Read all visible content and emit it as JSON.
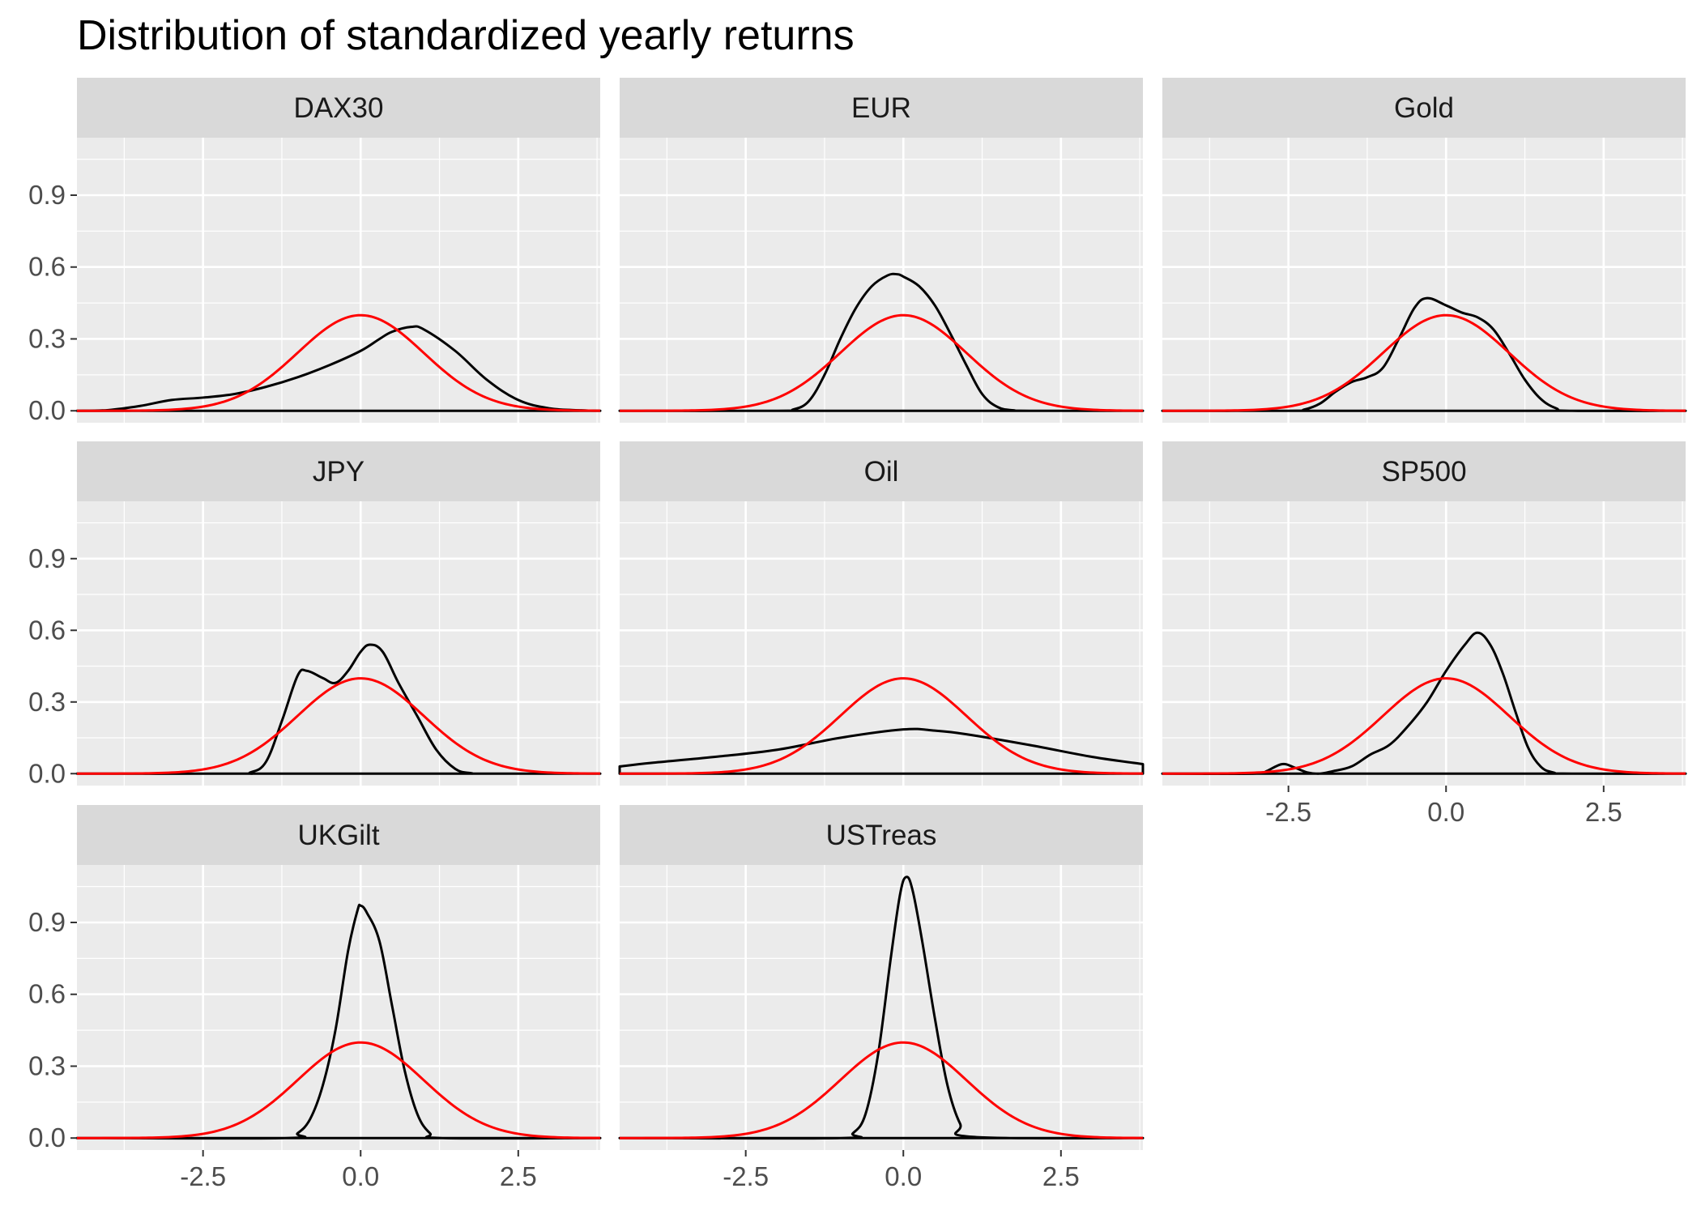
{
  "chart_data": {
    "type": "line",
    "title": "Distribution of standardized yearly returns",
    "xlabel": "",
    "ylabel": "",
    "xlim": [
      -4.5,
      3.8
    ],
    "ylim": [
      -0.05,
      1.14
    ],
    "x_ticks": [
      -2.5,
      0.0,
      2.5
    ],
    "x_tick_labels": [
      "-2.5",
      "0.0",
      "2.5"
    ],
    "y_ticks": [
      0.0,
      0.3,
      0.6,
      0.9
    ],
    "y_tick_labels": [
      "0.0",
      "0.3",
      "0.6",
      "0.9"
    ],
    "grid": true,
    "legend": "none",
    "colors": {
      "density": "#000000",
      "normal": "#ff0000",
      "panel_bg": "#ebebeb",
      "strip_bg": "#d9d9d9",
      "grid": "#ffffff"
    },
    "reference_curve": {
      "mean": 0,
      "sd": 1,
      "x_range": [
        -4.5,
        3.8
      ]
    },
    "panels": [
      {
        "label": "DAX30",
        "x": [
          -4.5,
          -4.0,
          -3.5,
          -3.0,
          -2.5,
          -2.0,
          -1.5,
          -1.0,
          -0.5,
          0.0,
          0.3,
          0.5,
          0.8,
          1.0,
          1.5,
          2.0,
          2.5,
          3.0,
          3.5,
          3.8
        ],
        "y": [
          0,
          0.003,
          0.02,
          0.045,
          0.055,
          0.07,
          0.1,
          0.14,
          0.19,
          0.25,
          0.3,
          0.33,
          0.35,
          0.34,
          0.25,
          0.13,
          0.045,
          0.01,
          0.002,
          0
        ]
      },
      {
        "label": "EUR",
        "x": [
          -4.5,
          -2.0,
          -1.75,
          -1.5,
          -1.25,
          -1.0,
          -0.75,
          -0.5,
          -0.25,
          -0.1,
          0.0,
          0.25,
          0.5,
          0.75,
          1.0,
          1.25,
          1.5,
          1.75,
          2.0,
          3.8
        ],
        "y": [
          0,
          0,
          0.005,
          0.04,
          0.15,
          0.3,
          0.43,
          0.52,
          0.565,
          0.57,
          0.56,
          0.52,
          0.44,
          0.32,
          0.19,
          0.07,
          0.015,
          0.002,
          0,
          0
        ]
      },
      {
        "label": "Gold",
        "x": [
          -4.5,
          -2.5,
          -2.25,
          -2.0,
          -1.75,
          -1.5,
          -1.25,
          -1.0,
          -0.75,
          -0.5,
          -0.3,
          0.0,
          0.25,
          0.5,
          0.75,
          1.0,
          1.25,
          1.5,
          1.75,
          2.0,
          3.8
        ],
        "y": [
          0,
          0,
          0.005,
          0.03,
          0.08,
          0.12,
          0.14,
          0.18,
          0.3,
          0.43,
          0.47,
          0.44,
          0.41,
          0.39,
          0.34,
          0.24,
          0.13,
          0.05,
          0.01,
          0,
          0
        ]
      },
      {
        "label": "JPY",
        "x": [
          -4.5,
          -2.0,
          -1.75,
          -1.5,
          -1.25,
          -1.0,
          -0.85,
          -0.6,
          -0.4,
          -0.2,
          0.0,
          0.15,
          0.35,
          0.6,
          0.9,
          1.2,
          1.5,
          1.75,
          2.0,
          3.8
        ],
        "y": [
          0,
          0,
          0.005,
          0.05,
          0.22,
          0.41,
          0.43,
          0.4,
          0.38,
          0.43,
          0.51,
          0.54,
          0.51,
          0.38,
          0.24,
          0.1,
          0.02,
          0.002,
          0,
          0
        ]
      },
      {
        "label": "Oil",
        "x": [
          -4.5,
          -4.0,
          -3.0,
          -2.0,
          -1.0,
          0.0,
          0.5,
          1.0,
          2.0,
          3.0,
          3.8
        ],
        "y": [
          0.03,
          0.045,
          0.07,
          0.1,
          0.15,
          0.185,
          0.18,
          0.165,
          0.12,
          0.07,
          0.04
        ]
      },
      {
        "label": "SP500",
        "x": [
          -4.5,
          -3.0,
          -2.85,
          -2.6,
          -2.4,
          -2.2,
          -2.0,
          -1.8,
          -1.5,
          -1.2,
          -0.9,
          -0.6,
          -0.3,
          0.0,
          0.3,
          0.5,
          0.7,
          0.9,
          1.1,
          1.3,
          1.5,
          1.7,
          2.0,
          3.8
        ],
        "y": [
          0,
          0,
          0.01,
          0.04,
          0.025,
          0.005,
          0.0,
          0.01,
          0.03,
          0.08,
          0.12,
          0.2,
          0.3,
          0.43,
          0.54,
          0.59,
          0.54,
          0.42,
          0.26,
          0.11,
          0.03,
          0.005,
          0,
          0
        ]
      },
      {
        "label": "UKGilt",
        "x": [
          -4.5,
          -1.2,
          -1.0,
          -0.8,
          -0.6,
          -0.4,
          -0.2,
          -0.05,
          0.0,
          0.1,
          0.3,
          0.5,
          0.7,
          0.9,
          1.1,
          1.3,
          3.8
        ],
        "y": [
          0,
          0,
          0.02,
          0.08,
          0.22,
          0.45,
          0.78,
          0.95,
          0.97,
          0.94,
          0.82,
          0.55,
          0.28,
          0.1,
          0.02,
          0,
          0
        ]
      },
      {
        "label": "USTreas",
        "x": [
          -4.5,
          -1.0,
          -0.8,
          -0.6,
          -0.4,
          -0.2,
          -0.05,
          0.05,
          0.15,
          0.3,
          0.5,
          0.7,
          0.9,
          1.1,
          3.8
        ],
        "y": [
          0,
          0,
          0.02,
          0.1,
          0.35,
          0.75,
          1.02,
          1.09,
          1.03,
          0.82,
          0.5,
          0.22,
          0.06,
          0.005,
          0
        ]
      }
    ]
  }
}
